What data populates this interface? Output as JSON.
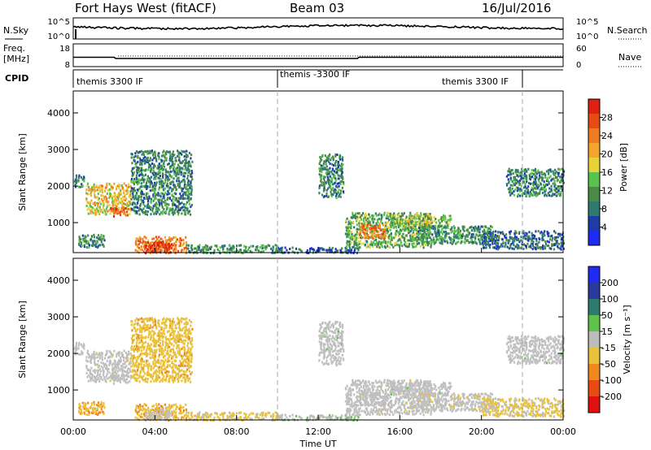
{
  "header": {
    "title": "Fort Hays West (fitACF)",
    "beam": "Beam 03",
    "date": "16/Jul/2016"
  },
  "noise_panel": {
    "left_label": "N.Sky",
    "left_ticks": [
      "10^5",
      "10^0"
    ],
    "right_ticks": [
      "10^5",
      "10^0"
    ],
    "right_label": "N.Search"
  },
  "freq_panel": {
    "left_label_line1": "Freq.",
    "left_label_line2": "[MHz]",
    "left_ticks": [
      "18",
      "8"
    ],
    "right_ticks": [
      "60",
      "0"
    ],
    "right_label": "Nave"
  },
  "cpid_panel": {
    "label": "CPID",
    "segments": [
      "themis 3300 IF",
      "themis -3300 IF",
      "themis 3300 IF"
    ]
  },
  "power_panel": {
    "ylabel": "Slant Range [km]",
    "yticks": [
      "4000",
      "3000",
      "2000",
      "1000"
    ],
    "colorbar_label": "Power [dB]",
    "colorbar_ticks": [
      "28",
      "24",
      "20",
      "16",
      "12",
      "8",
      "4"
    ],
    "colors": [
      "#1f2bf0",
      "#1c3da8",
      "#2f7a6e",
      "#4a8a46",
      "#57c24c",
      "#e8d23a",
      "#f2a42c",
      "#f07a1e",
      "#e84a14",
      "#e02010"
    ]
  },
  "velocity_panel": {
    "ylabel": "Slant Range [km]",
    "yticks": [
      "4000",
      "3000",
      "2000",
      "1000"
    ],
    "colorbar_label": "Velocity [m s⁻¹]",
    "colorbar_ticks": [
      "200",
      "100",
      "50",
      "15",
      "-15",
      "-50",
      "-100",
      "-200"
    ],
    "colors": [
      "#1f2bf0",
      "#2a3a9c",
      "#2f7a6e",
      "#5fc24a",
      "#bcbcbc",
      "#e8c23a",
      "#f0881e",
      "#e84a14",
      "#e01010"
    ],
    "ground_scatter_color": "#c0c0c0"
  },
  "xaxis": {
    "ticks": [
      "00:00",
      "04:00",
      "08:00",
      "12:00",
      "16:00",
      "20:00",
      "00:00"
    ],
    "label": "Time UT"
  },
  "chart_data": {
    "type": "heatmap",
    "x_unit": "hours UT",
    "xlim": [
      0,
      24
    ],
    "ylim": [
      180,
      4600
    ],
    "y_unit": "km",
    "cpid_changes_hours": [
      10,
      22
    ],
    "power_clim": [
      0,
      30
    ],
    "velocity_clim": [
      -250,
      250
    ],
    "scatter_regions": [
      {
        "t0": 0.0,
        "t1": 0.5,
        "r0": 2000,
        "r1": 2350,
        "power": 8,
        "velocity": 5,
        "ground": true
      },
      {
        "t0": 0.6,
        "t1": 2.8,
        "r0": 1250,
        "r1": 2100,
        "power": 18,
        "velocity": -5,
        "ground": true
      },
      {
        "t0": 1.8,
        "t1": 2.7,
        "r0": 1200,
        "r1": 1450,
        "power": 26,
        "velocity": -10,
        "ground": true
      },
      {
        "t0": 2.8,
        "t1": 5.8,
        "r0": 1250,
        "r1": 3000,
        "power": 9,
        "velocity": -60,
        "ground": false
      },
      {
        "t0": 0.2,
        "t1": 1.5,
        "r0": 350,
        "r1": 700,
        "power": 10,
        "velocity": -80,
        "ground": false
      },
      {
        "t0": 3.0,
        "t1": 5.5,
        "r0": 200,
        "r1": 650,
        "power": 22,
        "velocity": -70,
        "ground": false
      },
      {
        "t0": 3.5,
        "t1": 4.8,
        "r0": 200,
        "r1": 500,
        "power": 28,
        "velocity": -80,
        "ground": true
      },
      {
        "t0": 5.5,
        "t1": 10.0,
        "r0": 200,
        "r1": 420,
        "power": 10,
        "velocity": -40,
        "ground": false
      },
      {
        "t0": 10.0,
        "t1": 14.0,
        "r0": 200,
        "r1": 350,
        "power": 6,
        "velocity": 10,
        "ground": false
      },
      {
        "t0": 12.0,
        "t1": 13.2,
        "r0": 1700,
        "r1": 2900,
        "power": 9,
        "velocity": 5,
        "ground": true
      },
      {
        "t0": 13.3,
        "t1": 17.5,
        "r0": 350,
        "r1": 1300,
        "power": 12,
        "velocity": -5,
        "ground": true
      },
      {
        "t0": 14.0,
        "t1": 15.3,
        "r0": 600,
        "r1": 1000,
        "power": 22,
        "velocity": -10,
        "ground": true
      },
      {
        "t0": 15.5,
        "t1": 18.5,
        "r0": 900,
        "r1": 1250,
        "power": 14,
        "velocity": 5,
        "ground": true
      },
      {
        "t0": 16.8,
        "t1": 20.5,
        "r0": 450,
        "r1": 950,
        "power": 10,
        "velocity": -30,
        "ground": true
      },
      {
        "t0": 20.0,
        "t1": 24.0,
        "r0": 300,
        "r1": 800,
        "power": 7,
        "velocity": -40,
        "ground": false
      },
      {
        "t0": 21.2,
        "t1": 24.0,
        "r0": 1750,
        "r1": 2500,
        "power": 9,
        "velocity": 5,
        "ground": true
      }
    ]
  }
}
